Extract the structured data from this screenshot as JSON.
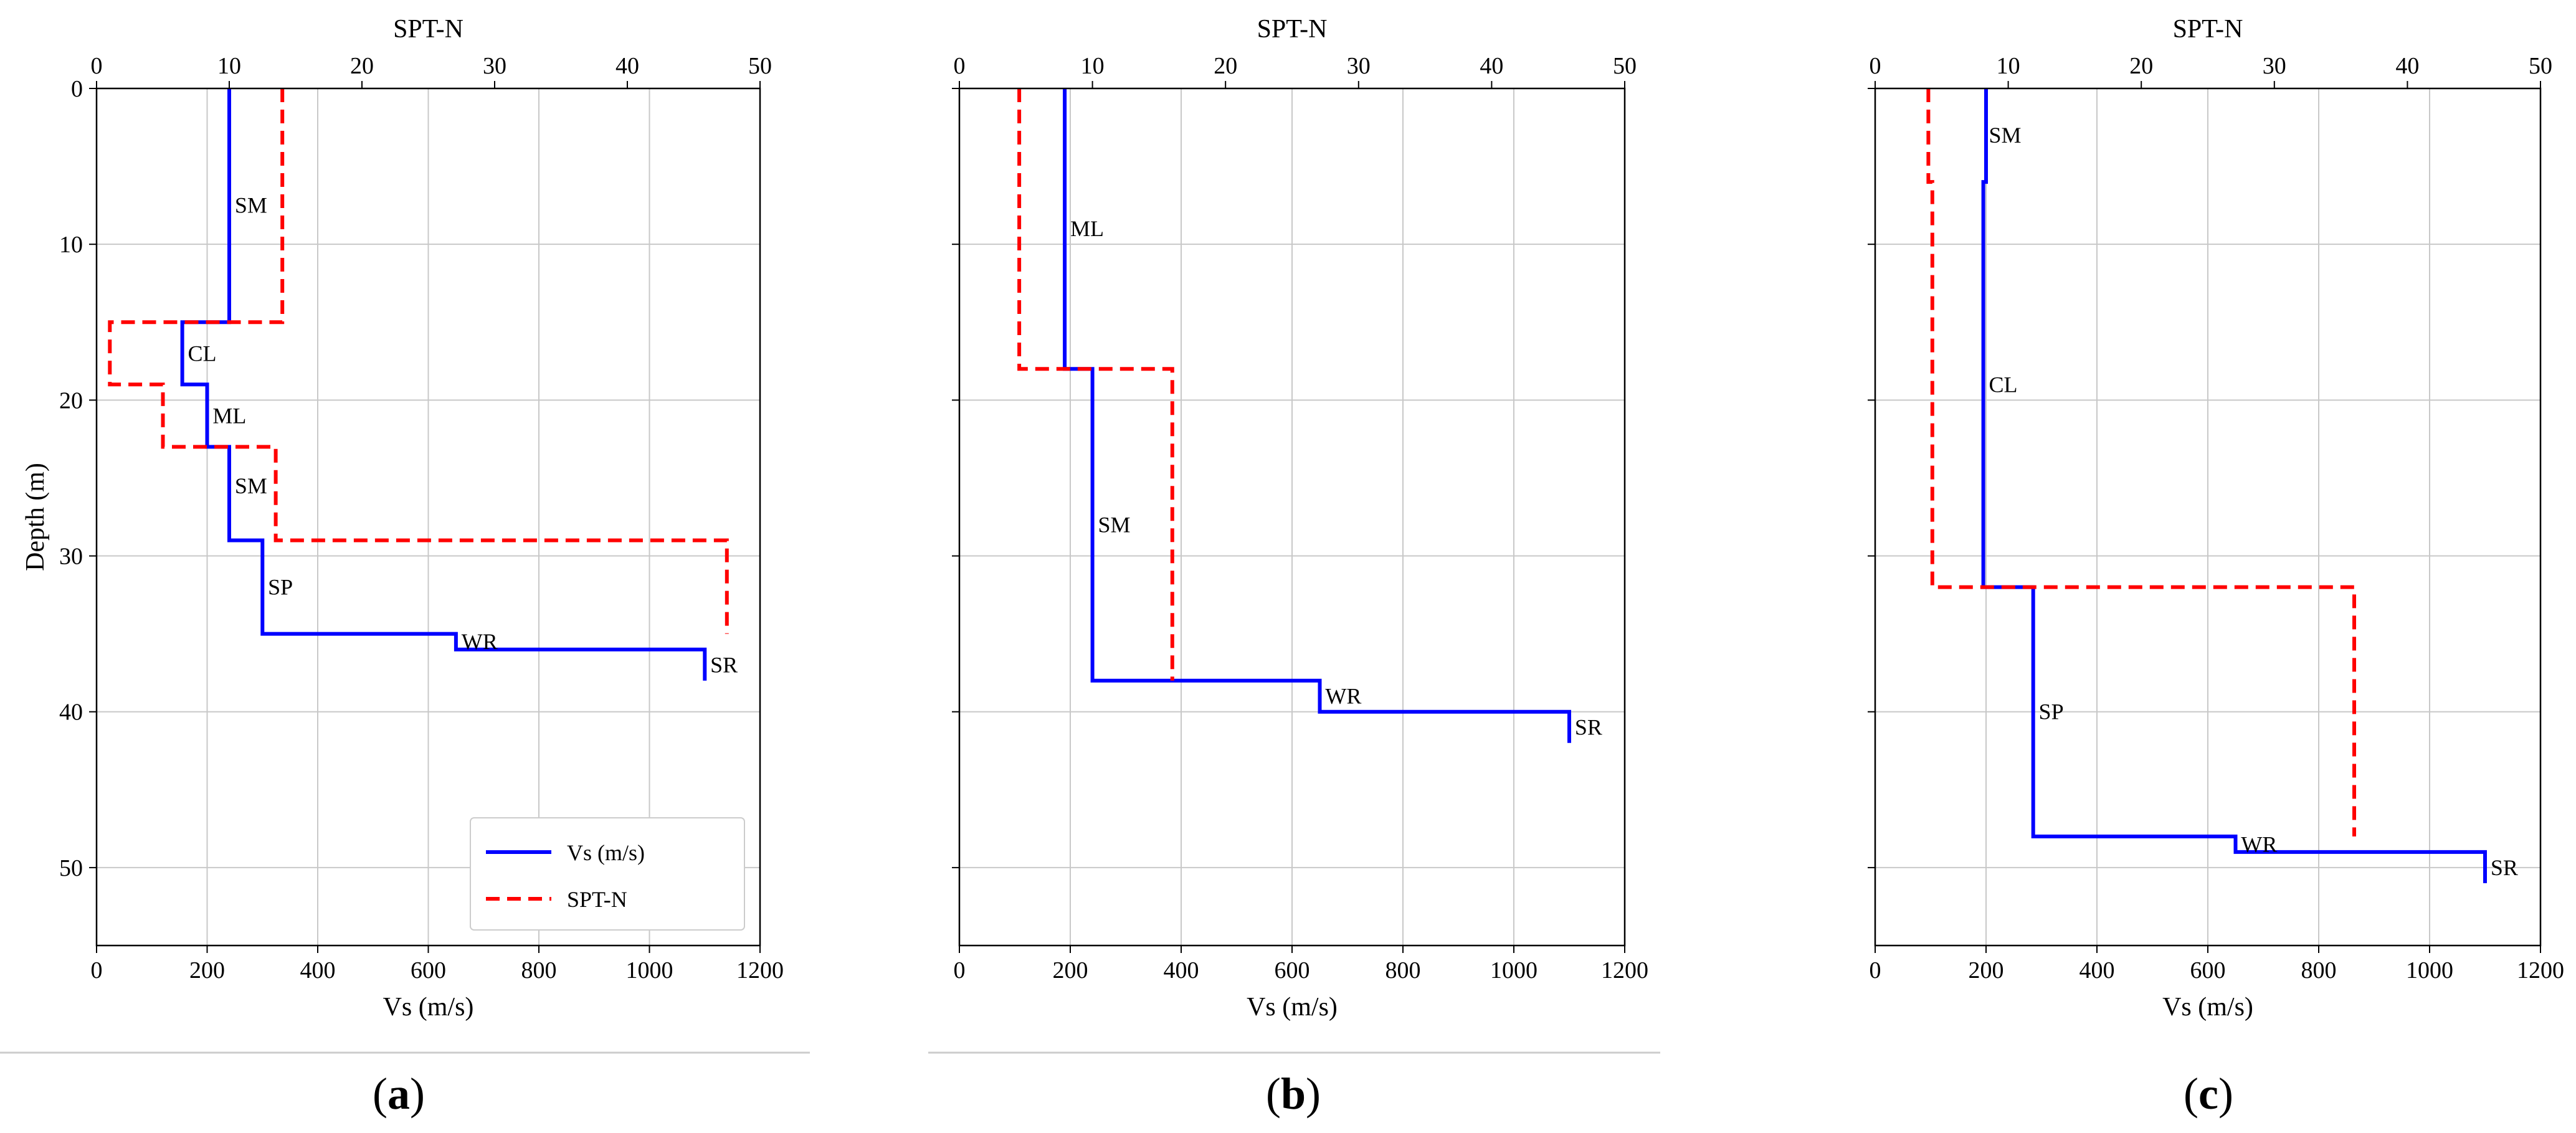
{
  "chart_data": [
    {
      "type": "line",
      "panel_label": "a",
      "xlabel_bottom": "Vs (m/s)",
      "xlabel_top": "SPT-N",
      "ylabel": "Depth (m)",
      "xlim_bottom": [
        0,
        1200
      ],
      "xlim_top": [
        0,
        50
      ],
      "ylim": [
        0,
        55
      ],
      "y_inverted": true,
      "x_ticks_bottom": [
        0,
        200,
        400,
        600,
        800,
        1000,
        1200
      ],
      "x_ticks_top": [
        0,
        10,
        20,
        30,
        40,
        50
      ],
      "y_ticks": [
        0,
        10,
        20,
        30,
        40,
        50
      ],
      "grid": true,
      "legend": {
        "placement": "bottom-right",
        "entries": [
          "Vs (m/s)",
          "SPT-N"
        ]
      },
      "series": [
        {
          "name": "Vs (m/s)",
          "axis": "bottom",
          "color": "#0000ff",
          "style": "solid",
          "points": [
            [
              240,
              0
            ],
            [
              240,
              15
            ],
            [
              155,
              15
            ],
            [
              155,
              19
            ],
            [
              200,
              19
            ],
            [
              200,
              23
            ],
            [
              240,
              23
            ],
            [
              240,
              29
            ],
            [
              300,
              29
            ],
            [
              300,
              35
            ],
            [
              650,
              35
            ],
            [
              650,
              36
            ],
            [
              1100,
              36
            ],
            [
              1100,
              38
            ]
          ]
        },
        {
          "name": "SPT-N",
          "axis": "top",
          "color": "#ff0000",
          "style": "dashed",
          "points": [
            [
              14,
              0
            ],
            [
              14,
              15
            ],
            [
              1,
              15
            ],
            [
              1,
              19
            ],
            [
              5,
              19
            ],
            [
              5,
              23
            ],
            [
              13.5,
              23
            ],
            [
              13.5,
              29
            ],
            [
              47.5,
              29
            ],
            [
              47.5,
              35
            ]
          ]
        }
      ],
      "annotations": [
        {
          "text": "SM",
          "x": 250,
          "y": 7.5
        },
        {
          "text": "CL",
          "x": 165,
          "y": 17
        },
        {
          "text": "ML",
          "x": 210,
          "y": 21
        },
        {
          "text": "SM",
          "x": 250,
          "y": 25.5
        },
        {
          "text": "SP",
          "x": 310,
          "y": 32
        },
        {
          "text": "WR",
          "x": 660,
          "y": 35.5
        },
        {
          "text": "SR",
          "x": 1110,
          "y": 37
        }
      ]
    },
    {
      "type": "line",
      "panel_label": "b",
      "xlabel_bottom": "Vs (m/s)",
      "xlabel_top": "SPT-N",
      "ylabel": "",
      "xlim_bottom": [
        0,
        1200
      ],
      "xlim_top": [
        0,
        50
      ],
      "ylim": [
        0,
        55
      ],
      "y_inverted": true,
      "x_ticks_bottom": [
        0,
        200,
        400,
        600,
        800,
        1000,
        1200
      ],
      "x_ticks_top": [
        0,
        10,
        20,
        30,
        40,
        50
      ],
      "y_ticks": [
        0,
        10,
        20,
        30,
        40,
        50
      ],
      "grid": true,
      "series": [
        {
          "name": "Vs (m/s)",
          "axis": "bottom",
          "color": "#0000ff",
          "style": "solid",
          "points": [
            [
              190,
              0
            ],
            [
              190,
              18
            ],
            [
              240,
              18
            ],
            [
              240,
              38
            ],
            [
              650,
              38
            ],
            [
              650,
              40
            ],
            [
              1100,
              40
            ],
            [
              1100,
              42
            ]
          ]
        },
        {
          "name": "SPT-N",
          "axis": "top",
          "color": "#ff0000",
          "style": "dashed",
          "points": [
            [
              4.5,
              0
            ],
            [
              4.5,
              18
            ],
            [
              16,
              18
            ],
            [
              16,
              38
            ]
          ]
        }
      ],
      "annotations": [
        {
          "text": "ML",
          "x": 200,
          "y": 9
        },
        {
          "text": "SM",
          "x": 250,
          "y": 28
        },
        {
          "text": "WR",
          "x": 660,
          "y": 39
        },
        {
          "text": "SR",
          "x": 1110,
          "y": 41
        }
      ]
    },
    {
      "type": "line",
      "panel_label": "c",
      "xlabel_bottom": "Vs (m/s)",
      "xlabel_top": "SPT-N",
      "ylabel": "",
      "xlim_bottom": [
        0,
        1200
      ],
      "xlim_top": [
        0,
        50
      ],
      "ylim": [
        0,
        55
      ],
      "y_inverted": true,
      "x_ticks_bottom": [
        0,
        200,
        400,
        600,
        800,
        1000,
        1200
      ],
      "x_ticks_top": [
        0,
        10,
        20,
        30,
        40,
        50
      ],
      "y_ticks": [
        0,
        10,
        20,
        30,
        40,
        50
      ],
      "grid": true,
      "series": [
        {
          "name": "Vs (m/s)",
          "axis": "bottom",
          "color": "#0000ff",
          "style": "solid",
          "points": [
            [
              200,
              0
            ],
            [
              200,
              6
            ],
            [
              195,
              6
            ],
            [
              195,
              32
            ],
            [
              285,
              32
            ],
            [
              285,
              48
            ],
            [
              650,
              48
            ],
            [
              650,
              49
            ],
            [
              1100,
              49
            ],
            [
              1100,
              51
            ]
          ]
        },
        {
          "name": "SPT-N",
          "axis": "top",
          "color": "#ff0000",
          "style": "dashed",
          "points": [
            [
              4,
              0
            ],
            [
              4,
              6
            ],
            [
              4.3,
              6
            ],
            [
              4.3,
              32
            ],
            [
              36,
              32
            ],
            [
              36,
              48
            ]
          ]
        }
      ],
      "annotations": [
        {
          "text": "SM",
          "x": 205,
          "y": 3
        },
        {
          "text": "CL",
          "x": 205,
          "y": 19
        },
        {
          "text": "SP",
          "x": 295,
          "y": 40
        },
        {
          "text": "WR",
          "x": 660,
          "y": 48.5
        },
        {
          "text": "SR",
          "x": 1110,
          "y": 50
        }
      ]
    }
  ]
}
